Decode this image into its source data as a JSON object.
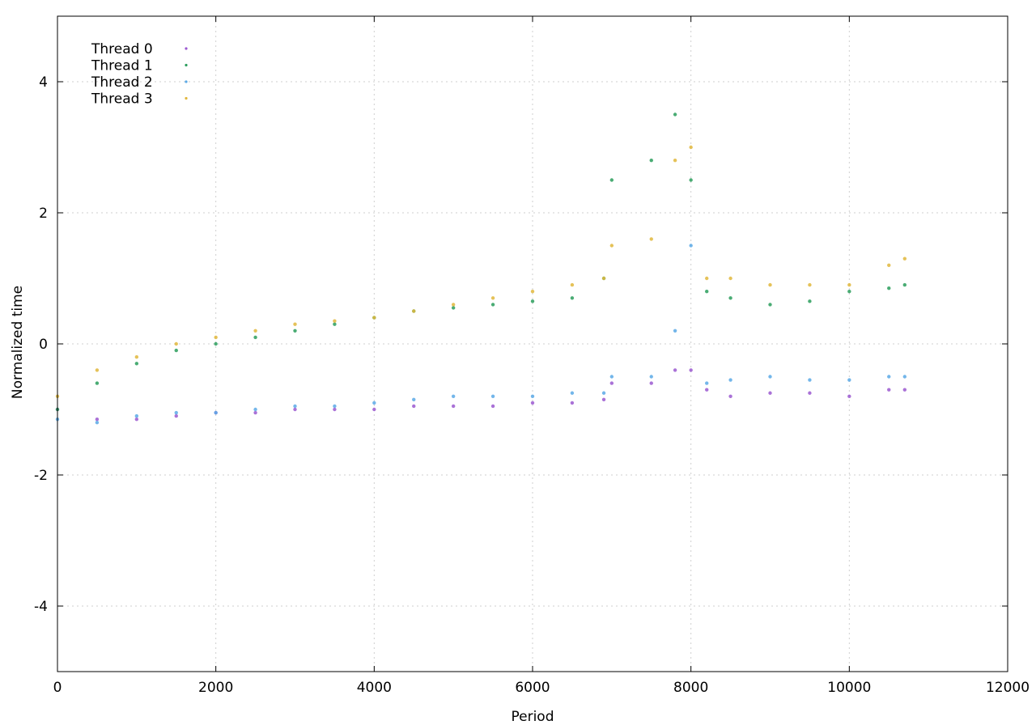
{
  "chart_data": {
    "type": "scatter",
    "title": "",
    "xlabel": "Period",
    "ylabel": "Normalized time",
    "xlim": [
      0,
      12000
    ],
    "ylim": [
      -5,
      5
    ],
    "xticks": [
      0,
      2000,
      4000,
      6000,
      8000,
      10000,
      12000
    ],
    "yticks": [
      -4,
      -2,
      0,
      2,
      4
    ],
    "xtick_labels": [
      "0",
      "2000",
      "4000",
      "6000",
      "8000",
      "10000",
      "12000"
    ],
    "ytick_labels": [
      "-4",
      "-2",
      "0",
      "2",
      "4"
    ],
    "grid": true,
    "legend_position": "top-left",
    "series": [
      {
        "name": "Thread 0",
        "color": "#9b59d0",
        "x": [
          0,
          500,
          1000,
          1500,
          2000,
          2500,
          3000,
          3500,
          4000,
          4500,
          5000,
          5500,
          6000,
          6500,
          6900,
          7000,
          7500,
          7800,
          8000,
          8200,
          8500,
          9000,
          9500,
          10000,
          10500,
          10700
        ],
        "y": [
          -1.0,
          -1.15,
          -1.15,
          -1.1,
          -1.05,
          -1.05,
          -1.0,
          -1.0,
          -1.0,
          -0.95,
          -0.95,
          -0.95,
          -0.9,
          -0.9,
          -0.85,
          -0.6,
          -0.6,
          -0.4,
          -0.4,
          -0.7,
          -0.8,
          -0.75,
          -0.75,
          -0.8,
          -0.7,
          -0.7
        ]
      },
      {
        "name": "Thread 1",
        "color": "#2a9d5c",
        "x": [
          0,
          500,
          1000,
          1500,
          2000,
          2500,
          3000,
          3500,
          4000,
          4500,
          5000,
          5500,
          6000,
          6500,
          6900,
          7000,
          7500,
          7800,
          8000,
          8200,
          8500,
          9000,
          9500,
          10000,
          10500,
          10700
        ],
        "y": [
          -1.0,
          -0.6,
          -0.3,
          -0.1,
          0.0,
          0.1,
          0.2,
          0.3,
          0.4,
          0.5,
          0.55,
          0.6,
          0.65,
          0.7,
          1.0,
          2.5,
          2.8,
          3.5,
          2.5,
          0.8,
          0.7,
          0.6,
          0.65,
          0.8,
          0.85,
          0.9
        ]
      },
      {
        "name": "Thread 2",
        "color": "#5aa9e6",
        "x": [
          0,
          500,
          1000,
          1500,
          2000,
          2500,
          3000,
          3500,
          4000,
          4500,
          5000,
          5500,
          6000,
          6500,
          6900,
          7000,
          7500,
          7800,
          8000,
          8200,
          8500,
          9000,
          9500,
          10000,
          10500,
          10700
        ],
        "y": [
          -1.15,
          -1.2,
          -1.1,
          -1.05,
          -1.05,
          -1.0,
          -0.95,
          -0.95,
          -0.9,
          -0.85,
          -0.8,
          -0.8,
          -0.8,
          -0.75,
          -0.75,
          -0.5,
          -0.5,
          0.2,
          1.5,
          -0.6,
          -0.55,
          -0.5,
          -0.55,
          -0.55,
          -0.5,
          -0.5
        ]
      },
      {
        "name": "Thread 3",
        "color": "#e0b73c",
        "x": [
          0,
          500,
          1000,
          1500,
          2000,
          2500,
          3000,
          3500,
          4000,
          4500,
          5000,
          5500,
          6000,
          6500,
          6900,
          7000,
          7500,
          7800,
          8000,
          8200,
          8500,
          9000,
          9500,
          10000,
          10500,
          10700
        ],
        "y": [
          -0.8,
          -0.4,
          -0.2,
          0.0,
          0.1,
          0.2,
          0.3,
          0.35,
          0.4,
          0.5,
          0.6,
          0.7,
          0.8,
          0.9,
          1.0,
          1.5,
          1.6,
          2.8,
          3.0,
          1.0,
          1.0,
          0.9,
          0.9,
          0.9,
          1.2,
          1.3
        ]
      }
    ]
  }
}
